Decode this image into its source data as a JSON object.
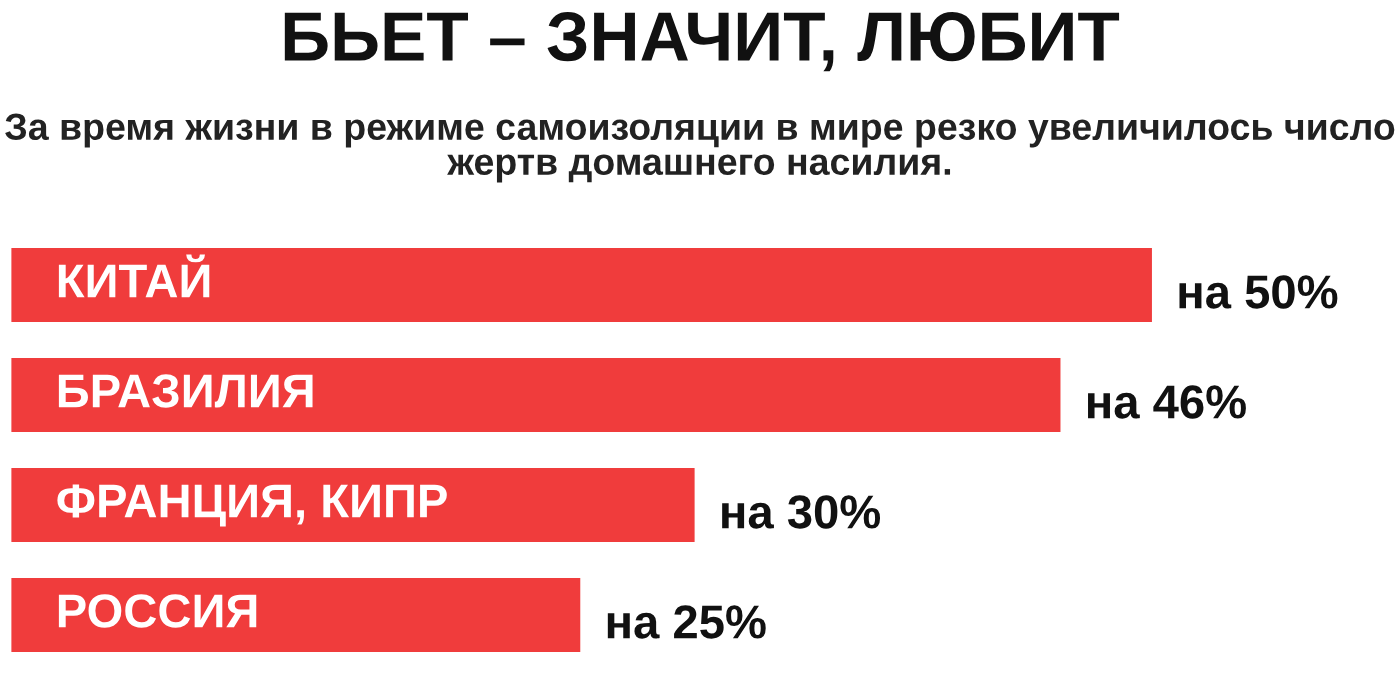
{
  "chart_data": {
    "type": "bar",
    "orientation": "horizontal",
    "title": "БЬЕТ – ЗНАЧИТ, ЛЮБИТ",
    "subtitle": "За время жизни в режиме самоизоляции в мире резко увеличилось число жертв домашнего насилия.",
    "categories": [
      "КИТАЙ",
      "БРАЗИЛИЯ",
      "ФРАНЦИЯ, КИПР",
      "РОССИЯ"
    ],
    "values": [
      50,
      46,
      30,
      25
    ],
    "value_labels": [
      "на 50%",
      "на 46%",
      "на 30%",
      "на 25%"
    ],
    "color": "#f03c3c"
  }
}
